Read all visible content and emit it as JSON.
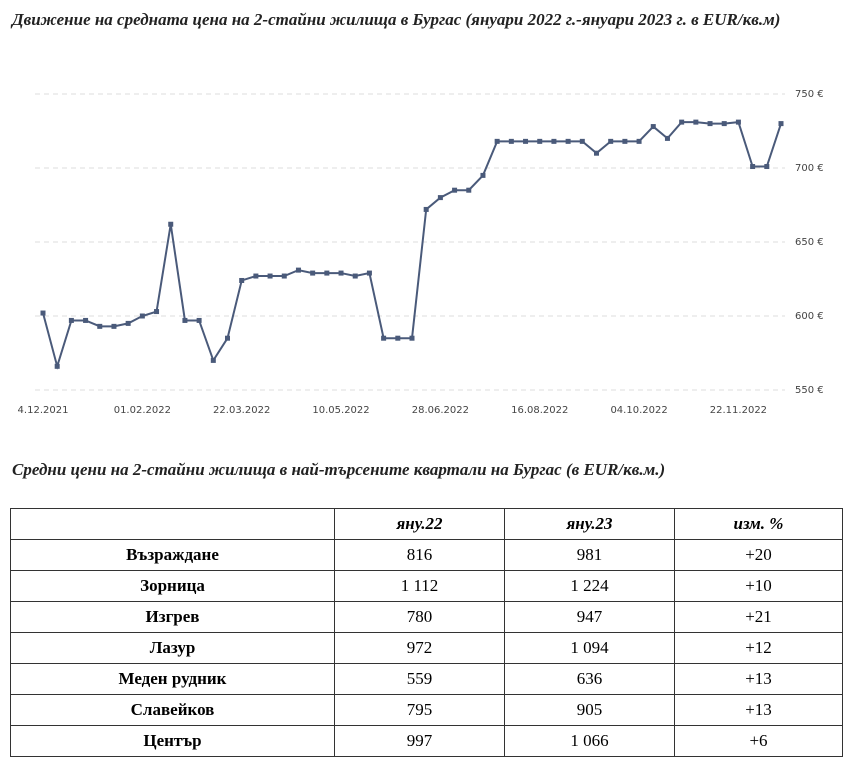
{
  "chart_data": {
    "type": "line",
    "title": "Движение на средната цена на 2-стайни жилища в Бургас (януари 2022 г.-януари 2023 г. в EUR/кв.м)",
    "categories": [
      "4.12.2021",
      null,
      null,
      null,
      null,
      null,
      null,
      "01.02.2022",
      null,
      null,
      null,
      null,
      null,
      null,
      "22.03.2022",
      null,
      null,
      null,
      null,
      null,
      null,
      "10.05.2022",
      null,
      null,
      null,
      null,
      null,
      null,
      "28.06.2022",
      null,
      null,
      null,
      null,
      null,
      null,
      "16.08.2022",
      null,
      null,
      null,
      null,
      null,
      null,
      "04.10.2022",
      null,
      null,
      null,
      null,
      null,
      null,
      "22.11.2022",
      null,
      null,
      null
    ],
    "series": [
      {
        "color": "#4a5a7a",
        "values": [
          602,
          566,
          597,
          597,
          593,
          593,
          595,
          600,
          603,
          662,
          597,
          597,
          570,
          585,
          624,
          627,
          627,
          627,
          631,
          629,
          629,
          629,
          627,
          629,
          585,
          585,
          585,
          672,
          680,
          685,
          685,
          695,
          718,
          718,
          718,
          718,
          718,
          718,
          718,
          710,
          718,
          718,
          718,
          728,
          720,
          731,
          731,
          730,
          730,
          731,
          701,
          701,
          730
        ]
      }
    ],
    "ylim": [
      550,
      750
    ],
    "yticks": [
      {
        "value": 550,
        "label": "550 €"
      },
      {
        "value": 600,
        "label": "600 €"
      },
      {
        "value": 650,
        "label": "650 €"
      },
      {
        "value": 700,
        "label": "700 €"
      },
      {
        "value": 750,
        "label": "750 €"
      }
    ],
    "grid": true
  },
  "table": {
    "title": "Средни цени на 2-стайни жилища в най-търсените квартали на Бургас (в EUR/кв.м.)",
    "header": [
      "яну.22",
      "яну.23",
      "изм. %"
    ],
    "rows": [
      [
        "Възраждане",
        "816",
        "981",
        "+20"
      ],
      [
        "Зорница",
        "1 112",
        "1 224",
        "+10"
      ],
      [
        "Изгрев",
        "780",
        "947",
        "+21"
      ],
      [
        "Лазур",
        "972",
        "1 094",
        "+12"
      ],
      [
        "Меден рудник",
        "559",
        "636",
        "+13"
      ],
      [
        "Славейков",
        "795",
        "905",
        "+13"
      ],
      [
        "Център",
        "997",
        "1 066",
        "+6"
      ]
    ]
  }
}
